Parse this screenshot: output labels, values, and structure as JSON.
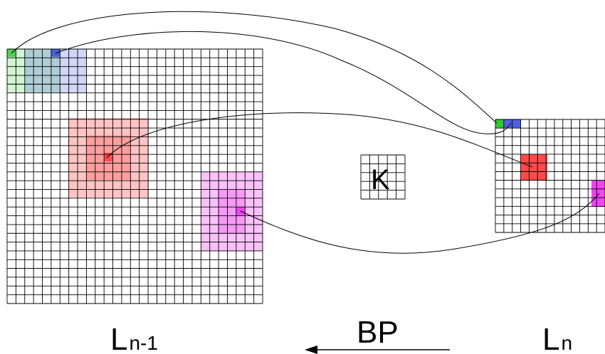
{
  "labels": {
    "prev_layer_main": "L",
    "prev_layer_sub": "n-1",
    "next_layer_main": "L",
    "next_layer_sub": "n",
    "kernel": "K",
    "backprop": "BP"
  },
  "colors": {
    "grid_line": "#000000",
    "green": "#2ecc2e",
    "blue": "#3344dd",
    "red": "#ff2a2a",
    "magenta": "#ee22ee"
  }
}
